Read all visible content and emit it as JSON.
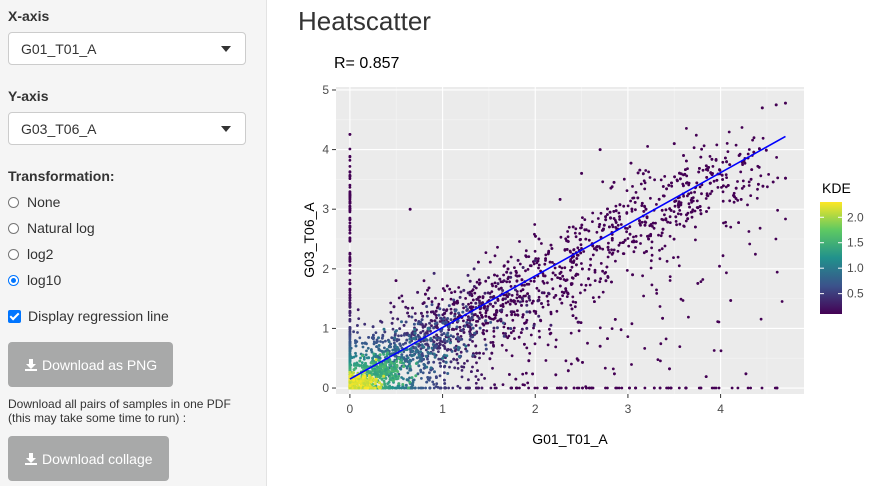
{
  "sidebar": {
    "x_axis_label": "X-axis",
    "x_axis_value": "G01_T01_A",
    "y_axis_label": "Y-axis",
    "y_axis_value": "G03_T06_A",
    "transformation_label": "Transformation:",
    "transformation_options": [
      "None",
      "Natural log",
      "log2",
      "log10"
    ],
    "transformation_selected": "log10",
    "regression_label": "Display regression line",
    "regression_checked": true,
    "download_png_label": "Download as PNG",
    "pdf_help_line1": "Download all pairs of samples in one PDF",
    "pdf_help_line2": "(this may take some time to run) :",
    "download_collage_label": "Download collage"
  },
  "main": {
    "title": "Heatscatter"
  },
  "colors": {
    "button_bg": "#a8a9a9",
    "panel_bg": "#ebebeb",
    "regression_line": "#0000ff",
    "point_low": "#440154",
    "point_high": "#fde725"
  },
  "chart_data": {
    "type": "scatter",
    "subtitle": "R= 0.857",
    "xlabel": "G01_T01_A",
    "ylabel": "G03_T06_A",
    "xlim": [
      -0.15,
      4.9
    ],
    "ylim": [
      -0.1,
      5.05
    ],
    "xticks": [
      0,
      1,
      2,
      3,
      4
    ],
    "yticks": [
      0,
      1,
      2,
      3,
      4,
      5
    ],
    "grid": true,
    "regression_line": {
      "x": [
        0,
        4.7
      ],
      "y": [
        0.15,
        4.22
      ]
    },
    "legend": {
      "title": "KDE",
      "ticks": [
        0.5,
        1.0,
        1.5,
        2.0
      ],
      "range": [
        0.1,
        2.3
      ],
      "placement": "right"
    },
    "density_clusters": [
      {
        "x": 0.1,
        "y": 0.08,
        "kde": 2.3
      },
      {
        "x": 0.35,
        "y": 0.3,
        "kde": 1.6
      },
      {
        "x": 0.7,
        "y": 0.6,
        "kde": 1.0
      },
      {
        "x": 1.1,
        "y": 1.0,
        "kde": 0.7
      },
      {
        "x": 1.6,
        "y": 1.45,
        "kde": 0.4
      }
    ],
    "outlier_points": [
      {
        "x": 4.45,
        "y": 4.7
      },
      {
        "x": 4.6,
        "y": 4.75
      },
      {
        "x": 4.7,
        "y": 4.78
      },
      {
        "x": 3.6,
        "y": 3.9
      },
      {
        "x": 3.9,
        "y": 3.6
      },
      {
        "x": 2.7,
        "y": 4.0
      },
      {
        "x": 3.5,
        "y": 4.1
      },
      {
        "x": 3.05,
        "y": 1.9
      },
      {
        "x": 0.65,
        "y": 3.0
      },
      {
        "x": 0.0,
        "y": 3.05
      },
      {
        "x": 4.2,
        "y": 3.9
      },
      {
        "x": 2.7,
        "y": 0.7
      },
      {
        "x": 2.85,
        "y": 3.45
      },
      {
        "x": 2.5,
        "y": 3.6
      }
    ]
  }
}
